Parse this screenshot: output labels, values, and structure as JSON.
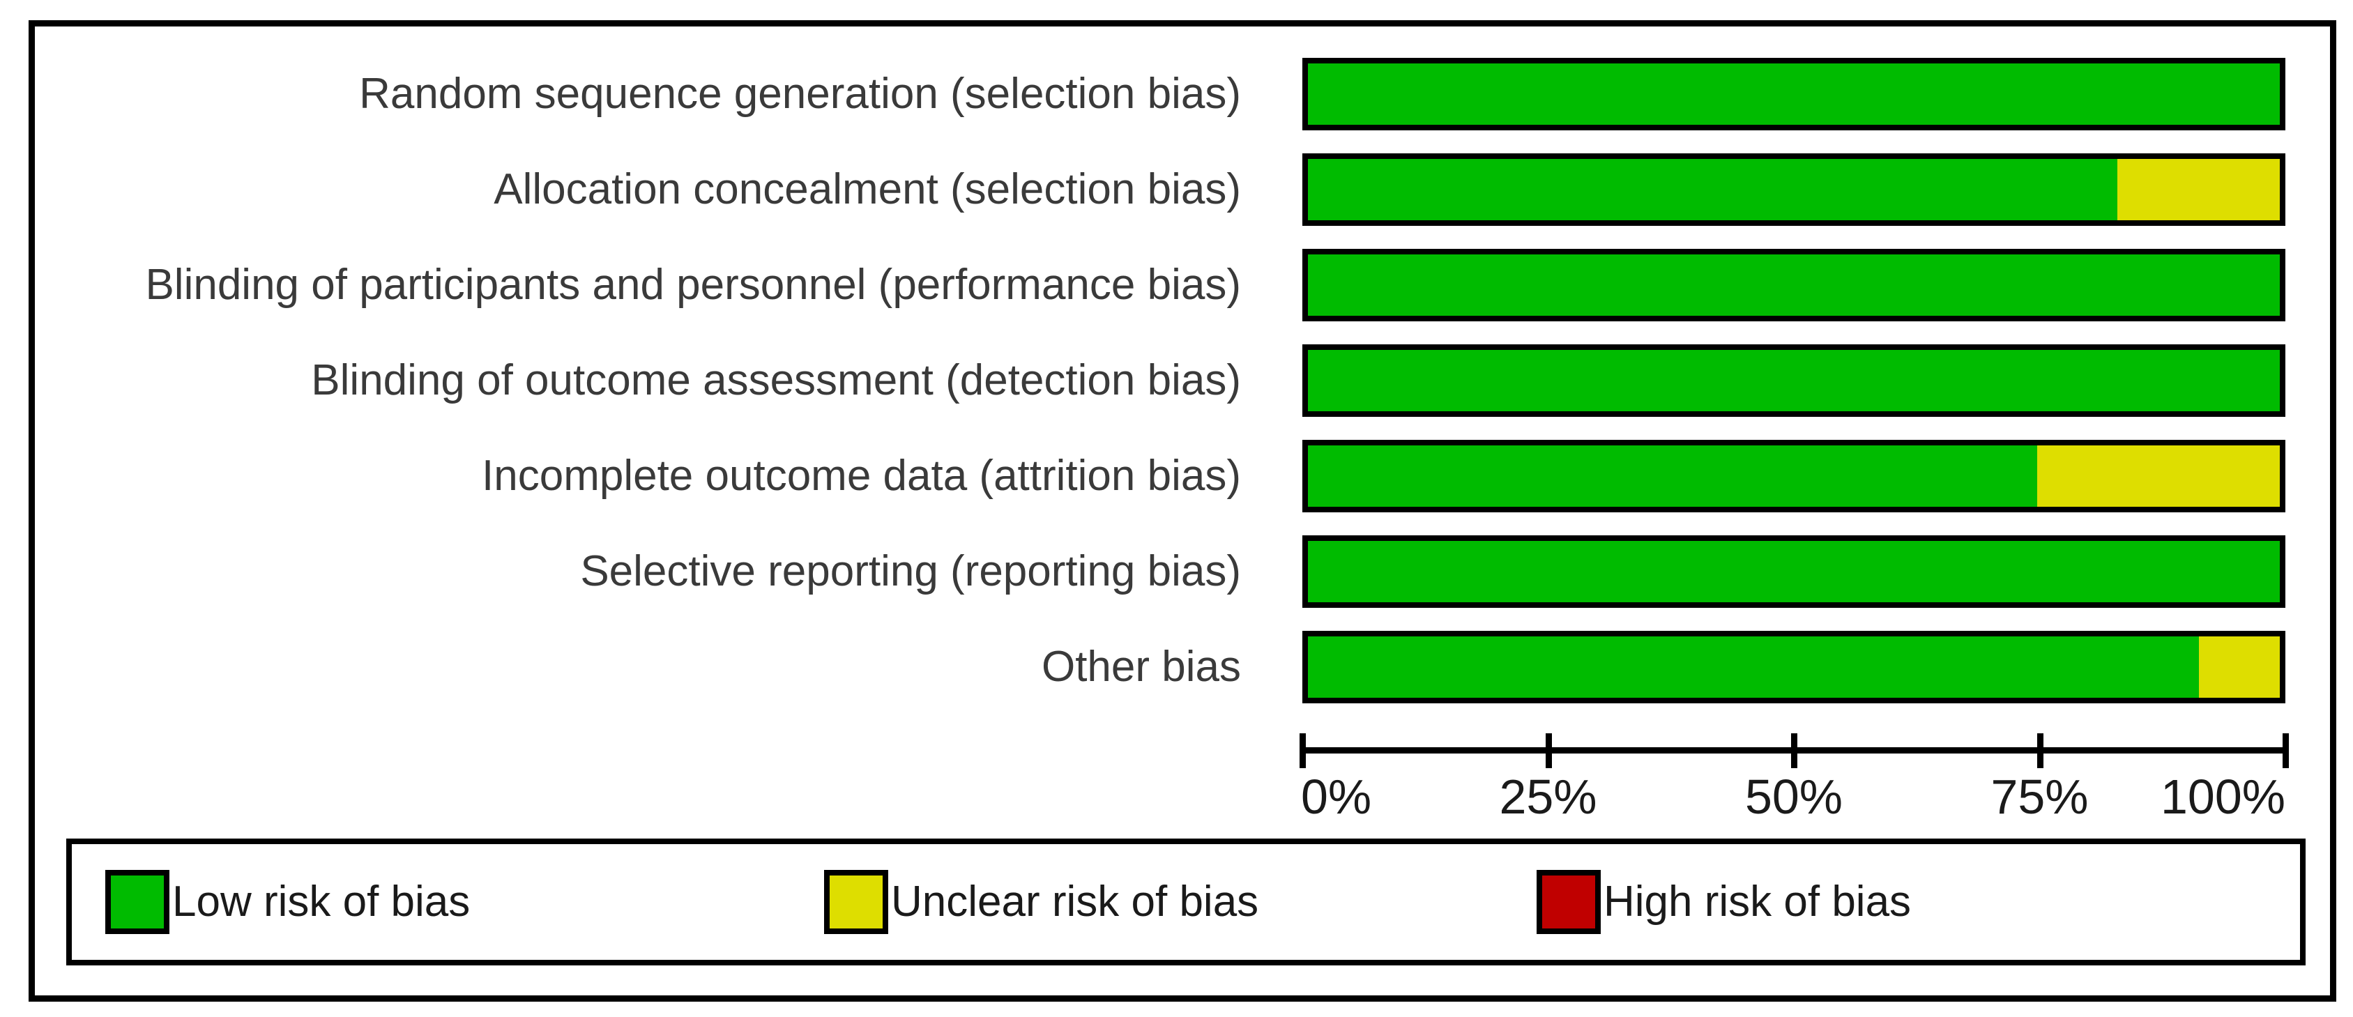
{
  "chart_data": {
    "type": "bar",
    "orientation": "horizontal",
    "stacked": true,
    "value_unit": "percent",
    "categories": [
      "Random sequence generation (selection bias)",
      "Allocation concealment (selection bias)",
      "Blinding of participants and personnel (performance bias)",
      "Blinding of outcome assessment (detection bias)",
      "Incomplete outcome data (attrition bias)",
      "Selective reporting (reporting bias)",
      "Other bias"
    ],
    "series": [
      {
        "name": "Low risk of bias",
        "color": "#00bb00",
        "values": [
          100,
          83.3,
          100,
          100,
          75,
          100,
          91.7
        ]
      },
      {
        "name": "Unclear risk of bias",
        "color": "#dede00",
        "values": [
          0,
          16.7,
          0,
          0,
          25,
          0,
          8.3
        ]
      },
      {
        "name": "High risk of bias",
        "color": "#c00000",
        "values": [
          0,
          0,
          0,
          0,
          0,
          0,
          0
        ]
      }
    ],
    "xlim": [
      0,
      100
    ],
    "x_ticks": [
      "0%",
      "25%",
      "50%",
      "75%",
      "100%"
    ],
    "x_tick_values": [
      0,
      25,
      50,
      75,
      100
    ],
    "grid": false,
    "legend_position": "bottom",
    "title": ""
  },
  "colors": {
    "low_risk": "#00bb00",
    "unclear_risk": "#dede00",
    "high_risk": "#c00000",
    "bar_border": "#000000",
    "background": "#ffffff"
  }
}
